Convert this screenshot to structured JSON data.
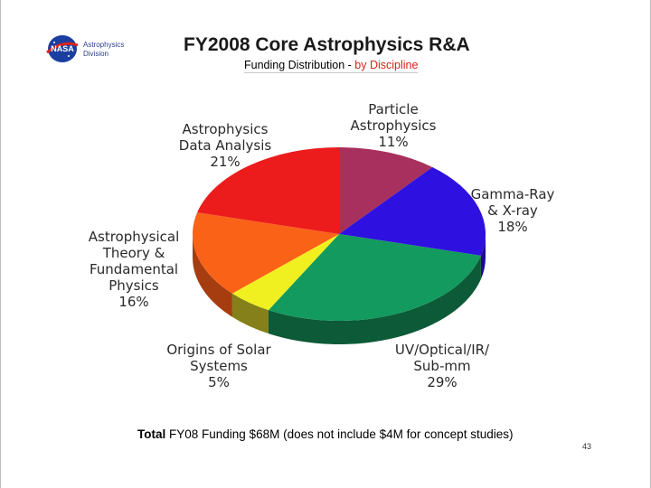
{
  "slide": {
    "logo_text_line1": "Astrophysics",
    "logo_text_line2": "Division",
    "logo_badge": "NASA",
    "title": "FY2008 Core Astrophysics R&A",
    "subtitle_main": "Funding Distribution - ",
    "subtitle_accent": "by Discipline",
    "footer_bold_1": "Total",
    "footer_rest": " FY08 Funding $68M (does not include $4M for concept studies)",
    "page_number": "43",
    "accent_color": "#d4241a"
  },
  "chart_data": {
    "type": "pie",
    "title": "",
    "categories": [
      "Particle Astrophysics",
      "Gamma-Ray & X-ray",
      "UV/Optical/IR/ Sub-mm",
      "Origins of Solar Systems",
      "Astrophysical Theory & Fundamental Physics",
      "Astrophysics Data Analysis"
    ],
    "values": [
      11,
      18,
      29,
      5,
      16,
      21
    ],
    "unit": "%",
    "labels": [
      "Particle\nAstrophysics\n11%",
      "Gamma-Ray\n& X-ray\n18%",
      "UV/Optical/IR/\nSub-mm\n29%",
      "Origins of Solar\nSystems\n5%",
      "Astrophysical\nTheory &\nFundamental\nPhysics\n16%",
      "Astrophysics\nData Analysis\n21%"
    ],
    "colors": [
      "#a8305e",
      "#2e10e0",
      "#139a5e",
      "#f0f020",
      "#fa6218",
      "#ec1c1c"
    ],
    "side_colors": [
      "#6e1f3e",
      "#1d0a90",
      "#0c5a37",
      "#85801a",
      "#a63d10",
      "#991212"
    ],
    "style": "3d",
    "legend": "none"
  }
}
